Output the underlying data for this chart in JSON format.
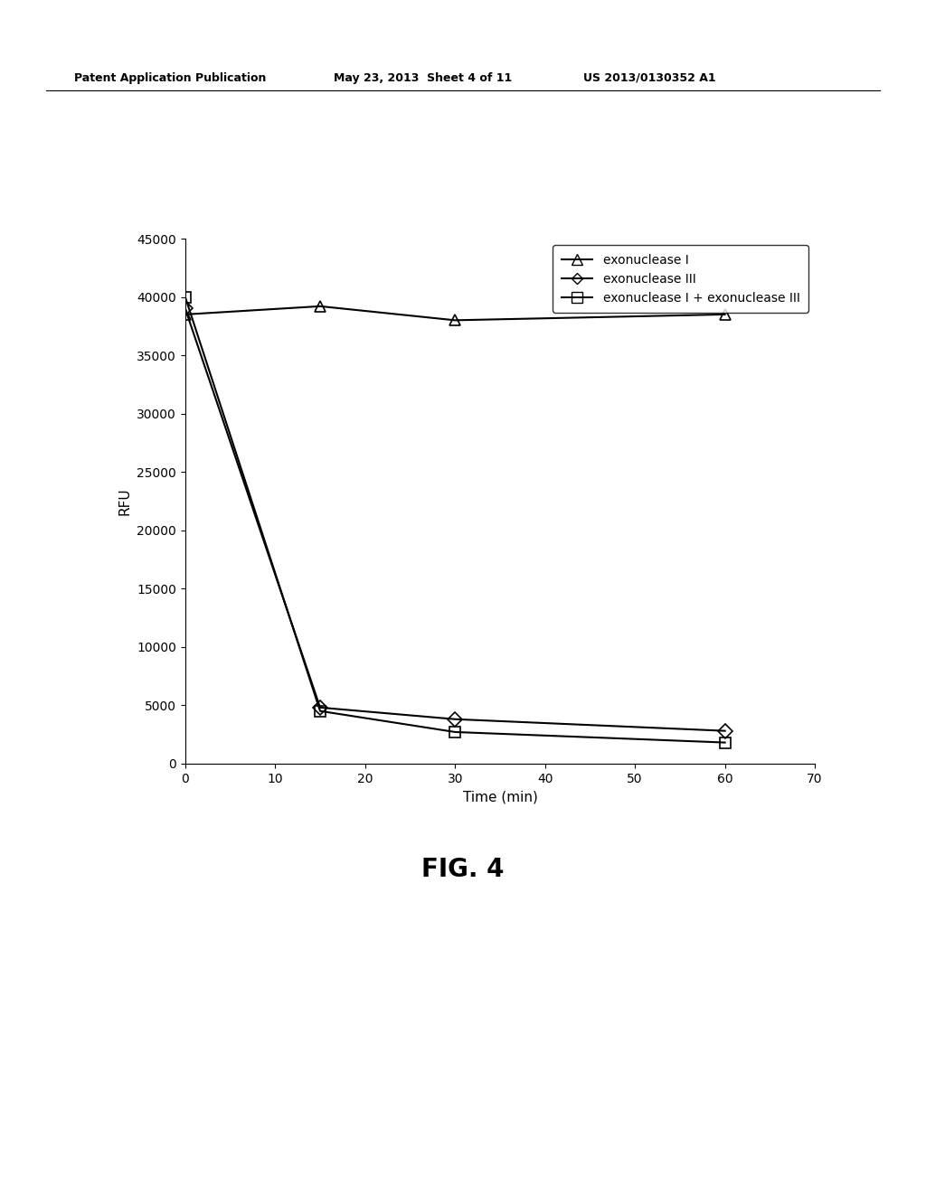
{
  "series": {
    "exonuclease_I": {
      "label": "exonuclease I",
      "x": [
        0,
        15,
        30,
        60
      ],
      "y": [
        38500,
        39200,
        38000,
        38500
      ],
      "marker": "^",
      "color": "#000000",
      "linestyle": "-"
    },
    "exonuclease_III": {
      "label": "exonuclease III",
      "x": [
        0,
        15,
        30,
        60
      ],
      "y": [
        39000,
        4800,
        3800,
        2800
      ],
      "marker": "D",
      "color": "#000000",
      "linestyle": "-"
    },
    "exonuclease_I_plus_III": {
      "label": "exonuclease I + exonuclease III",
      "x": [
        0,
        15,
        30,
        60
      ],
      "y": [
        40000,
        4500,
        2700,
        1800
      ],
      "marker": "s",
      "color": "#000000",
      "linestyle": "-"
    }
  },
  "xlabel": "Time (min)",
  "ylabel": "RFU",
  "xlim": [
    0,
    70
  ],
  "ylim": [
    0,
    45000
  ],
  "xticks": [
    0,
    10,
    20,
    30,
    40,
    50,
    60,
    70
  ],
  "yticks": [
    0,
    5000,
    10000,
    15000,
    20000,
    25000,
    30000,
    35000,
    40000,
    45000
  ],
  "fig_caption": "FIG. 4",
  "patent_left": "Patent Application Publication",
  "patent_center": "May 23, 2013  Sheet 4 of 11",
  "patent_right": "US 2013/0130352 A1",
  "background_color": "#ffffff",
  "marker_size": 8,
  "linewidth": 1.5
}
